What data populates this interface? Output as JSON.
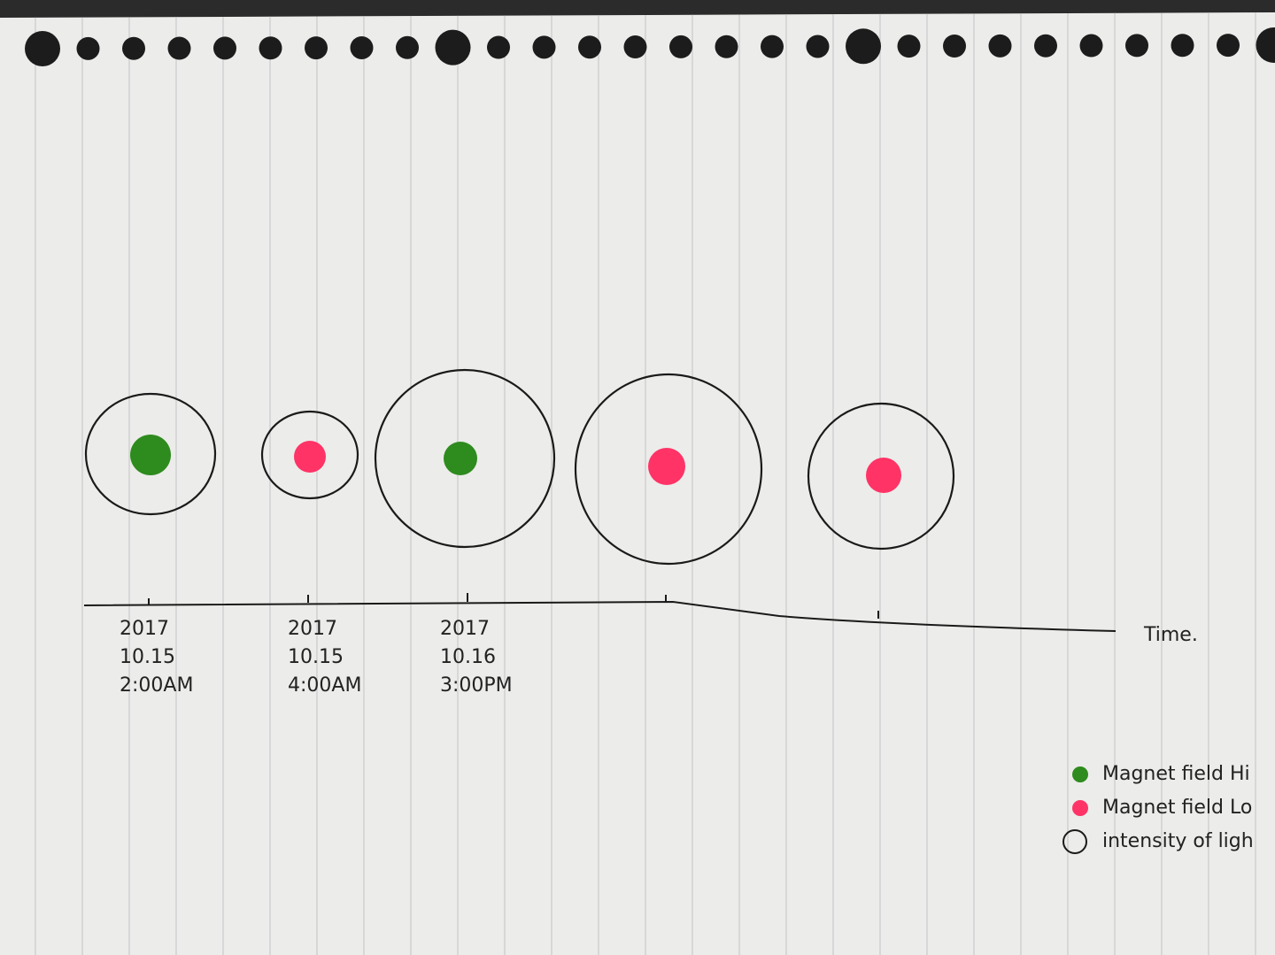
{
  "timeline": {
    "axis_label": "Time.",
    "ticks": [
      {
        "year": "2017",
        "date": "10.15",
        "time": "2:00AM"
      },
      {
        "year": "2017",
        "date": "10.15",
        "time": "4:00AM"
      },
      {
        "year": "2017",
        "date": "10.16",
        "time": "3:00PM"
      }
    ]
  },
  "legend": [
    {
      "label": "Magnet field Hi",
      "color": "#2e8b1e"
    },
    {
      "label": "Magnet field Lo",
      "color": "#ff3366"
    },
    {
      "label": "intensity of ligh"
    }
  ]
}
